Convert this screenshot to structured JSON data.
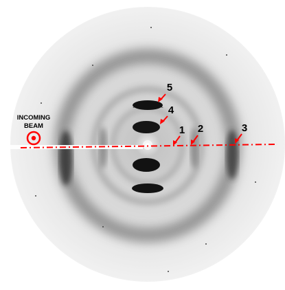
{
  "incoming_beam": {
    "line1": "INCOMING",
    "line2": "BEAM"
  },
  "labels": [
    "1",
    "2",
    "3",
    "4",
    "5"
  ],
  "colors": {
    "annotation": "#ff0000",
    "background": "#ffffff",
    "detector_field": "#b9b9b9",
    "dark_reflection": "#141414"
  }
}
